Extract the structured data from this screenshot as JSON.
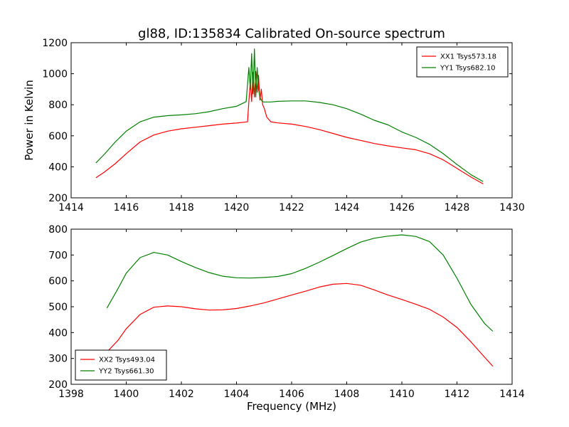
{
  "figure": {
    "title": "gl88, ID:135834 Calibrated On-source spectrum"
  },
  "chart_data": [
    {
      "type": "line",
      "title": "gl88, ID:135834 Calibrated On-source spectrum",
      "xlabel": "",
      "ylabel": "Power in Kelvin",
      "xlim": [
        1414,
        1430
      ],
      "ylim": [
        200,
        1200
      ],
      "xticks": [
        1414,
        1416,
        1418,
        1420,
        1422,
        1424,
        1426,
        1428,
        1430
      ],
      "yticks": [
        200,
        400,
        600,
        800,
        1000,
        1200
      ],
      "grid": false,
      "legend_position": "top-right",
      "series": [
        {
          "name": "XX1 Tsys573.18",
          "color": "#ff0000",
          "x": [
            1414.9,
            1415.2,
            1415.6,
            1416.0,
            1416.5,
            1417.0,
            1417.5,
            1418.0,
            1418.5,
            1419.0,
            1419.5,
            1420.0,
            1420.4,
            1420.45,
            1420.5,
            1420.55,
            1420.6,
            1420.65,
            1420.7,
            1420.75,
            1420.8,
            1420.85,
            1420.9,
            1420.95,
            1421.0,
            1421.1,
            1421.25,
            1421.5,
            1422.0,
            1422.5,
            1423.0,
            1423.5,
            1424.0,
            1424.5,
            1425.0,
            1425.5,
            1426.0,
            1426.5,
            1427.0,
            1427.5,
            1428.0,
            1428.5,
            1428.95
          ],
          "y": [
            330,
            365,
            420,
            485,
            560,
            605,
            630,
            645,
            655,
            665,
            675,
            682,
            690,
            820,
            950,
            820,
            1010,
            850,
            1015,
            880,
            990,
            830,
            900,
            800,
            780,
            720,
            690,
            683,
            675,
            660,
            640,
            615,
            590,
            570,
            550,
            535,
            522,
            510,
            485,
            445,
            390,
            335,
            290
          ]
        },
        {
          "name": "YY1 Tsys682.10",
          "color": "#008000",
          "x": [
            1414.9,
            1415.2,
            1415.6,
            1416.0,
            1416.5,
            1417.0,
            1417.5,
            1418.0,
            1418.5,
            1419.0,
            1419.5,
            1420.0,
            1420.35,
            1420.45,
            1420.5,
            1420.55,
            1420.6,
            1420.65,
            1420.7,
            1420.75,
            1420.8,
            1420.85,
            1420.9,
            1420.95,
            1421.0,
            1421.1,
            1421.25,
            1421.5,
            1422.0,
            1422.5,
            1423.0,
            1423.5,
            1424.0,
            1424.5,
            1425.0,
            1425.5,
            1426.0,
            1426.5,
            1427.0,
            1427.5,
            1428.0,
            1428.5,
            1428.95
          ],
          "y": [
            425,
            480,
            560,
            630,
            690,
            720,
            730,
            735,
            742,
            755,
            775,
            790,
            820,
            1040,
            900,
            1130,
            870,
            1160,
            850,
            1040,
            900,
            850,
            830,
            820,
            818,
            818,
            818,
            822,
            825,
            825,
            815,
            800,
            775,
            740,
            700,
            670,
            625,
            590,
            545,
            485,
            415,
            350,
            305
          ]
        }
      ]
    },
    {
      "type": "line",
      "title": "",
      "xlabel": "Frequency (MHz)",
      "ylabel": "",
      "xlim": [
        1398,
        1414
      ],
      "ylim": [
        200,
        800
      ],
      "xticks": [
        1398,
        1400,
        1402,
        1404,
        1406,
        1408,
        1410,
        1412,
        1414
      ],
      "yticks": [
        200,
        300,
        400,
        500,
        600,
        700,
        800
      ],
      "grid": false,
      "legend_position": "bottom-left",
      "series": [
        {
          "name": "XX2 Tsys493.04",
          "color": "#ff0000",
          "x": [
            1399.3,
            1399.7,
            1400.0,
            1400.5,
            1401.0,
            1401.5,
            1402.0,
            1402.5,
            1403.0,
            1403.5,
            1404.0,
            1404.5,
            1405.0,
            1405.5,
            1406.0,
            1406.5,
            1407.0,
            1407.5,
            1408.0,
            1408.5,
            1409.0,
            1409.5,
            1410.0,
            1410.5,
            1411.0,
            1411.5,
            1412.0,
            1412.5,
            1413.0,
            1413.3
          ],
          "y": [
            325,
            370,
            415,
            470,
            498,
            503,
            500,
            492,
            487,
            488,
            493,
            503,
            515,
            530,
            545,
            560,
            576,
            587,
            590,
            583,
            565,
            545,
            528,
            510,
            490,
            460,
            420,
            365,
            305,
            270
          ]
        },
        {
          "name": "YY2 Tsys661.30",
          "color": "#008000",
          "x": [
            1399.3,
            1399.7,
            1400.0,
            1400.5,
            1401.0,
            1401.5,
            1402.0,
            1402.5,
            1403.0,
            1403.5,
            1404.0,
            1404.5,
            1405.0,
            1405.5,
            1406.0,
            1406.5,
            1407.0,
            1407.5,
            1408.0,
            1408.5,
            1409.0,
            1409.5,
            1410.0,
            1410.5,
            1411.0,
            1411.5,
            1412.0,
            1412.5,
            1413.0,
            1413.3
          ],
          "y": [
            495,
            570,
            630,
            690,
            710,
            700,
            675,
            652,
            632,
            618,
            612,
            611,
            613,
            617,
            628,
            648,
            672,
            698,
            725,
            750,
            765,
            773,
            778,
            772,
            752,
            700,
            610,
            510,
            435,
            405
          ]
        }
      ]
    }
  ]
}
